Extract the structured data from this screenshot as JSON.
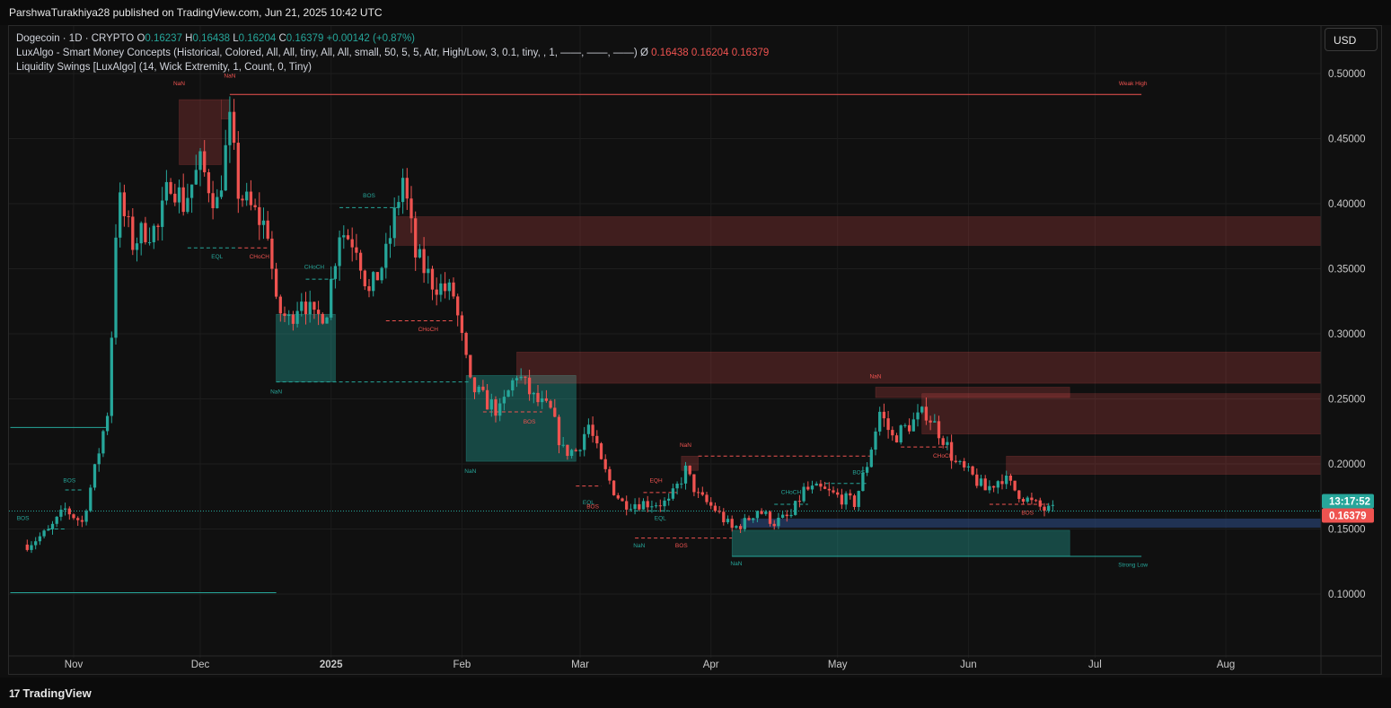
{
  "header": {
    "publisher": "ParshwaTurakhiya28 published on TradingView.com, Jun 21, 2025 10:42 UTC"
  },
  "legend": {
    "symbol_line": "Dogecoin · 1D · CRYPTO",
    "o_label": "O",
    "o_value": "0.16237",
    "h_label": "H",
    "h_value": "0.16438",
    "l_label": "L",
    "l_value": "0.16204",
    "c_label": "C",
    "c_value": "0.16379",
    "change": "+0.00142 (+0.87%)",
    "indicator1": "LuxAlgo - Smart Money Concepts (Historical, Colored, All, All, tiny, All, All, small, 50, 5, 5, Atr, High/Low, 3, 0.1, tiny, , 1, ——, ——, ——)",
    "indicator1_sym": "Ø",
    "indicator1_v1": "0.16438",
    "indicator1_v2": "0.16204",
    "indicator1_v3": "0.16379",
    "indicator2": "Liquidity Swings [LuxAlgo] (14, Wick Extremity, 1, Count, 0, Tiny)"
  },
  "toolbar": {
    "currency_label": "USD"
  },
  "price_badges": {
    "countdown": "13:17:52",
    "last_price": "0.16379"
  },
  "footer": {
    "brand": "TradingView",
    "brand_mark": "17"
  },
  "colors": {
    "bull": "#26a69a",
    "bear": "#ef5350",
    "background": "#101010"
  },
  "chart_data": {
    "type": "candlestick",
    "symbol": "Dogecoin",
    "interval": "1D",
    "y_ticks": [
      "0.50000",
      "0.45000",
      "0.40000",
      "0.35000",
      "0.30000",
      "0.25000",
      "0.20000",
      "0.15000",
      "0.10000"
    ],
    "x_ticks": [
      "Nov",
      "Dec",
      "2025",
      "Feb",
      "Mar",
      "Apr",
      "May",
      "Jun",
      "Jul",
      "Aug"
    ],
    "ylim": [
      0.06,
      0.52
    ],
    "grid": true,
    "close_path": [
      [
        "2024-10-21",
        0.138
      ],
      [
        "2024-10-26",
        0.148
      ],
      [
        "2024-10-30",
        0.165
      ],
      [
        "2024-11-03",
        0.155
      ],
      [
        "2024-11-06",
        0.195
      ],
      [
        "2024-11-09",
        0.24
      ],
      [
        "2024-11-10",
        0.3
      ],
      [
        "2024-11-11",
        0.38
      ],
      [
        "2024-11-12",
        0.4
      ],
      [
        "2024-11-15",
        0.37
      ],
      [
        "2024-11-18",
        0.38
      ],
      [
        "2024-11-21",
        0.38
      ],
      [
        "2024-11-24",
        0.42
      ],
      [
        "2024-11-27",
        0.4
      ],
      [
        "2024-12-01",
        0.43
      ],
      [
        "2024-12-05",
        0.4
      ],
      [
        "2024-12-08",
        0.46
      ],
      [
        "2024-12-10",
        0.41
      ],
      [
        "2024-12-12",
        0.4
      ],
      [
        "2024-12-17",
        0.38
      ],
      [
        "2024-12-19",
        0.32
      ],
      [
        "2024-12-22",
        0.31
      ],
      [
        "2024-12-25",
        0.33
      ],
      [
        "2024-12-28",
        0.31
      ],
      [
        "2024-12-31",
        0.32
      ],
      [
        "2025-01-03",
        0.38
      ],
      [
        "2025-01-07",
        0.37
      ],
      [
        "2025-01-10",
        0.33
      ],
      [
        "2025-01-14",
        0.36
      ],
      [
        "2025-01-18",
        0.42
      ],
      [
        "2025-01-21",
        0.36
      ],
      [
        "2025-01-25",
        0.34
      ],
      [
        "2025-01-30",
        0.33
      ],
      [
        "2025-02-03",
        0.26
      ],
      [
        "2025-02-06",
        0.25
      ],
      [
        "2025-02-10",
        0.24
      ],
      [
        "2025-02-14",
        0.27
      ],
      [
        "2025-02-18",
        0.25
      ],
      [
        "2025-02-22",
        0.24
      ],
      [
        "2025-02-25",
        0.21
      ],
      [
        "2025-02-28",
        0.21
      ],
      [
        "2025-03-03",
        0.23
      ],
      [
        "2025-03-06",
        0.2
      ],
      [
        "2025-03-09",
        0.18
      ],
      [
        "2025-03-11",
        0.17
      ],
      [
        "2025-03-14",
        0.17
      ],
      [
        "2025-03-18",
        0.17
      ],
      [
        "2025-03-22",
        0.17
      ],
      [
        "2025-03-26",
        0.195
      ],
      [
        "2025-03-29",
        0.175
      ],
      [
        "2025-04-02",
        0.165
      ],
      [
        "2025-04-06",
        0.15
      ],
      [
        "2025-04-09",
        0.155
      ],
      [
        "2025-04-12",
        0.165
      ],
      [
        "2025-04-16",
        0.155
      ],
      [
        "2025-04-20",
        0.16
      ],
      [
        "2025-04-23",
        0.18
      ],
      [
        "2025-04-27",
        0.18
      ],
      [
        "2025-05-01",
        0.175
      ],
      [
        "2025-05-05",
        0.17
      ],
      [
        "2025-05-08",
        0.2
      ],
      [
        "2025-05-11",
        0.24
      ],
      [
        "2025-05-14",
        0.22
      ],
      [
        "2025-05-18",
        0.23
      ],
      [
        "2025-05-22",
        0.24
      ],
      [
        "2025-05-26",
        0.22
      ],
      [
        "2025-05-29",
        0.2
      ],
      [
        "2025-06-02",
        0.19
      ],
      [
        "2025-06-05",
        0.18
      ],
      [
        "2025-06-09",
        0.19
      ],
      [
        "2025-06-12",
        0.18
      ],
      [
        "2025-06-16",
        0.17
      ],
      [
        "2025-06-19",
        0.165
      ],
      [
        "2025-06-21",
        0.16379
      ]
    ],
    "zones": [
      {
        "start": "2024-11-26",
        "end": "2024-12-06",
        "top": 0.48,
        "bottom": 0.43,
        "kind": "supply"
      },
      {
        "start": "2024-12-06",
        "end": "2024-12-08",
        "top": 0.48,
        "bottom": 0.465,
        "kind": "supply"
      },
      {
        "start": "2024-12-19",
        "end": "2025-01-02",
        "top": 0.315,
        "bottom": 0.263,
        "kind": "demand"
      },
      {
        "start": "2025-01-16",
        "end": "2025-08-25",
        "top": 0.39,
        "bottom": 0.368,
        "kind": "supply"
      },
      {
        "start": "2025-02-02",
        "end": "2025-02-28",
        "top": 0.268,
        "bottom": 0.202,
        "kind": "demand"
      },
      {
        "start": "2025-02-14",
        "end": "2025-08-25",
        "top": 0.286,
        "bottom": 0.262,
        "kind": "supply"
      },
      {
        "start": "2025-03-25",
        "end": "2025-03-29",
        "top": 0.206,
        "bottom": 0.195,
        "kind": "supply"
      },
      {
        "start": "2025-04-06",
        "end": "2025-06-25",
        "top": 0.149,
        "bottom": 0.129,
        "kind": "demand"
      },
      {
        "start": "2025-04-08",
        "end": "2025-08-25",
        "top": 0.158,
        "bottom": 0.151,
        "kind": "liquidity"
      },
      {
        "start": "2025-05-10",
        "end": "2025-06-25",
        "top": 0.259,
        "bottom": 0.251,
        "kind": "supply"
      },
      {
        "start": "2025-05-21",
        "end": "2025-08-25",
        "top": 0.254,
        "bottom": 0.223,
        "kind": "supply"
      },
      {
        "start": "2025-06-10",
        "end": "2025-08-25",
        "top": 0.206,
        "bottom": 0.192,
        "kind": "supply"
      }
    ],
    "lines": [
      {
        "start": "2024-12-08",
        "end": "2025-07-12",
        "y": 0.484,
        "color": "bear",
        "dash": false
      },
      {
        "start": "2024-10-17",
        "end": "2024-11-09",
        "y": 0.228,
        "color": "bull",
        "dash": false
      },
      {
        "start": "2024-10-17",
        "end": "2024-12-19",
        "y": 0.101,
        "color": "bull",
        "dash": false
      },
      {
        "start": "2025-04-06",
        "end": "2025-07-12",
        "y": 0.129,
        "color": "bull",
        "dash": false
      },
      {
        "start": "2024-12-19",
        "end": "2025-02-03",
        "y": 0.263,
        "color": "bull",
        "dash": true
      },
      {
        "start": "2024-12-26",
        "end": "2025-01-02",
        "y": 0.342,
        "color": "bull",
        "dash": true
      },
      {
        "start": "2025-01-03",
        "end": "2025-01-18",
        "y": 0.397,
        "color": "bull",
        "dash": true
      },
      {
        "start": "2024-11-28",
        "end": "2024-12-10",
        "y": 0.366,
        "color": "bull",
        "dash": true
      },
      {
        "start": "2024-12-10",
        "end": "2024-12-17",
        "y": 0.366,
        "color": "bear",
        "dash": true
      },
      {
        "start": "2025-01-14",
        "end": "2025-01-30",
        "y": 0.31,
        "color": "bear",
        "dash": true
      },
      {
        "start": "2025-02-06",
        "end": "2025-02-20",
        "y": 0.24,
        "color": "bear",
        "dash": true
      },
      {
        "start": "2025-02-28",
        "end": "2025-03-06",
        "y": 0.183,
        "color": "bear",
        "dash": true
      },
      {
        "start": "2025-03-14",
        "end": "2025-04-06",
        "y": 0.143,
        "color": "bear",
        "dash": true
      },
      {
        "start": "2025-03-16",
        "end": "2025-03-24",
        "y": 0.178,
        "color": "bear",
        "dash": true
      },
      {
        "start": "2025-03-14",
        "end": "2025-03-22",
        "y": 0.164,
        "color": "bull",
        "dash": true
      },
      {
        "start": "2025-03-29",
        "end": "2025-05-09",
        "y": 0.206,
        "color": "bear",
        "dash": true
      },
      {
        "start": "2025-04-16",
        "end": "2025-04-24",
        "y": 0.169,
        "color": "bull",
        "dash": true
      },
      {
        "start": "2025-04-28",
        "end": "2025-05-08",
        "y": 0.185,
        "color": "bull",
        "dash": true
      },
      {
        "start": "2025-05-16",
        "end": "2025-05-27",
        "y": 0.213,
        "color": "bear",
        "dash": true
      },
      {
        "start": "2025-06-06",
        "end": "2025-06-20",
        "y": 0.169,
        "color": "bear",
        "dash": true
      },
      {
        "start": "2024-10-26",
        "end": "2024-10-30",
        "y": 0.15,
        "color": "bull",
        "dash": true
      },
      {
        "start": "2024-10-30",
        "end": "2024-11-03",
        "y": 0.18,
        "color": "bull",
        "dash": true
      }
    ],
    "annotations": [
      {
        "text": "NaN",
        "date": "2024-11-26",
        "y": 0.491,
        "color": "bear"
      },
      {
        "text": "NaN",
        "date": "2024-12-08",
        "y": 0.497,
        "color": "bear"
      },
      {
        "text": "Weak High",
        "date": "2025-07-10",
        "y": 0.491,
        "color": "bear"
      },
      {
        "text": "BOS",
        "date": "2025-01-10",
        "y": 0.405,
        "color": "bull"
      },
      {
        "text": "EQL",
        "date": "2024-12-05",
        "y": 0.358,
        "color": "bull"
      },
      {
        "text": "CHoCH",
        "date": "2024-12-15",
        "y": 0.358,
        "color": "bear"
      },
      {
        "text": "CHoCH",
        "date": "2024-12-28",
        "y": 0.35,
        "color": "bull"
      },
      {
        "text": "CHoCH",
        "date": "2025-01-24",
        "y": 0.302,
        "color": "bear"
      },
      {
        "text": "NaN",
        "date": "2024-12-19",
        "y": 0.254,
        "color": "bull"
      },
      {
        "text": "BOS",
        "date": "2024-10-31",
        "y": 0.186,
        "color": "bull"
      },
      {
        "text": "BOS",
        "date": "2024-10-20",
        "y": 0.157,
        "color": "bull"
      },
      {
        "text": "BOS",
        "date": "2025-02-17",
        "y": 0.231,
        "color": "bear"
      },
      {
        "text": "NaN",
        "date": "2025-02-03",
        "y": 0.193,
        "color": "bull"
      },
      {
        "text": "NaN",
        "date": "2025-03-26",
        "y": 0.213,
        "color": "bear"
      },
      {
        "text": "EQH",
        "date": "2025-03-19",
        "y": 0.186,
        "color": "bear"
      },
      {
        "text": "EQL",
        "date": "2025-03-03",
        "y": 0.169,
        "color": "bull"
      },
      {
        "text": "BOS",
        "date": "2025-03-04",
        "y": 0.166,
        "color": "bear"
      },
      {
        "text": "EQL",
        "date": "2025-03-20",
        "y": 0.157,
        "color": "bull"
      },
      {
        "text": "NaN",
        "date": "2025-03-15",
        "y": 0.136,
        "color": "bull"
      },
      {
        "text": "BOS",
        "date": "2025-03-25",
        "y": 0.136,
        "color": "bear"
      },
      {
        "text": "NaN",
        "date": "2025-04-07",
        "y": 0.122,
        "color": "bull"
      },
      {
        "text": "CHoCH",
        "date": "2025-04-20",
        "y": 0.177,
        "color": "bull"
      },
      {
        "text": "BOS",
        "date": "2025-05-06",
        "y": 0.192,
        "color": "bull"
      },
      {
        "text": "NaN",
        "date": "2025-05-10",
        "y": 0.266,
        "color": "bear"
      },
      {
        "text": "CHoCH",
        "date": "2025-05-26",
        "y": 0.205,
        "color": "bear"
      },
      {
        "text": "BOS",
        "date": "2025-06-15",
        "y": 0.161,
        "color": "bear"
      },
      {
        "text": "Strong Low",
        "date": "2025-07-10",
        "y": 0.121,
        "color": "bull"
      }
    ]
  }
}
